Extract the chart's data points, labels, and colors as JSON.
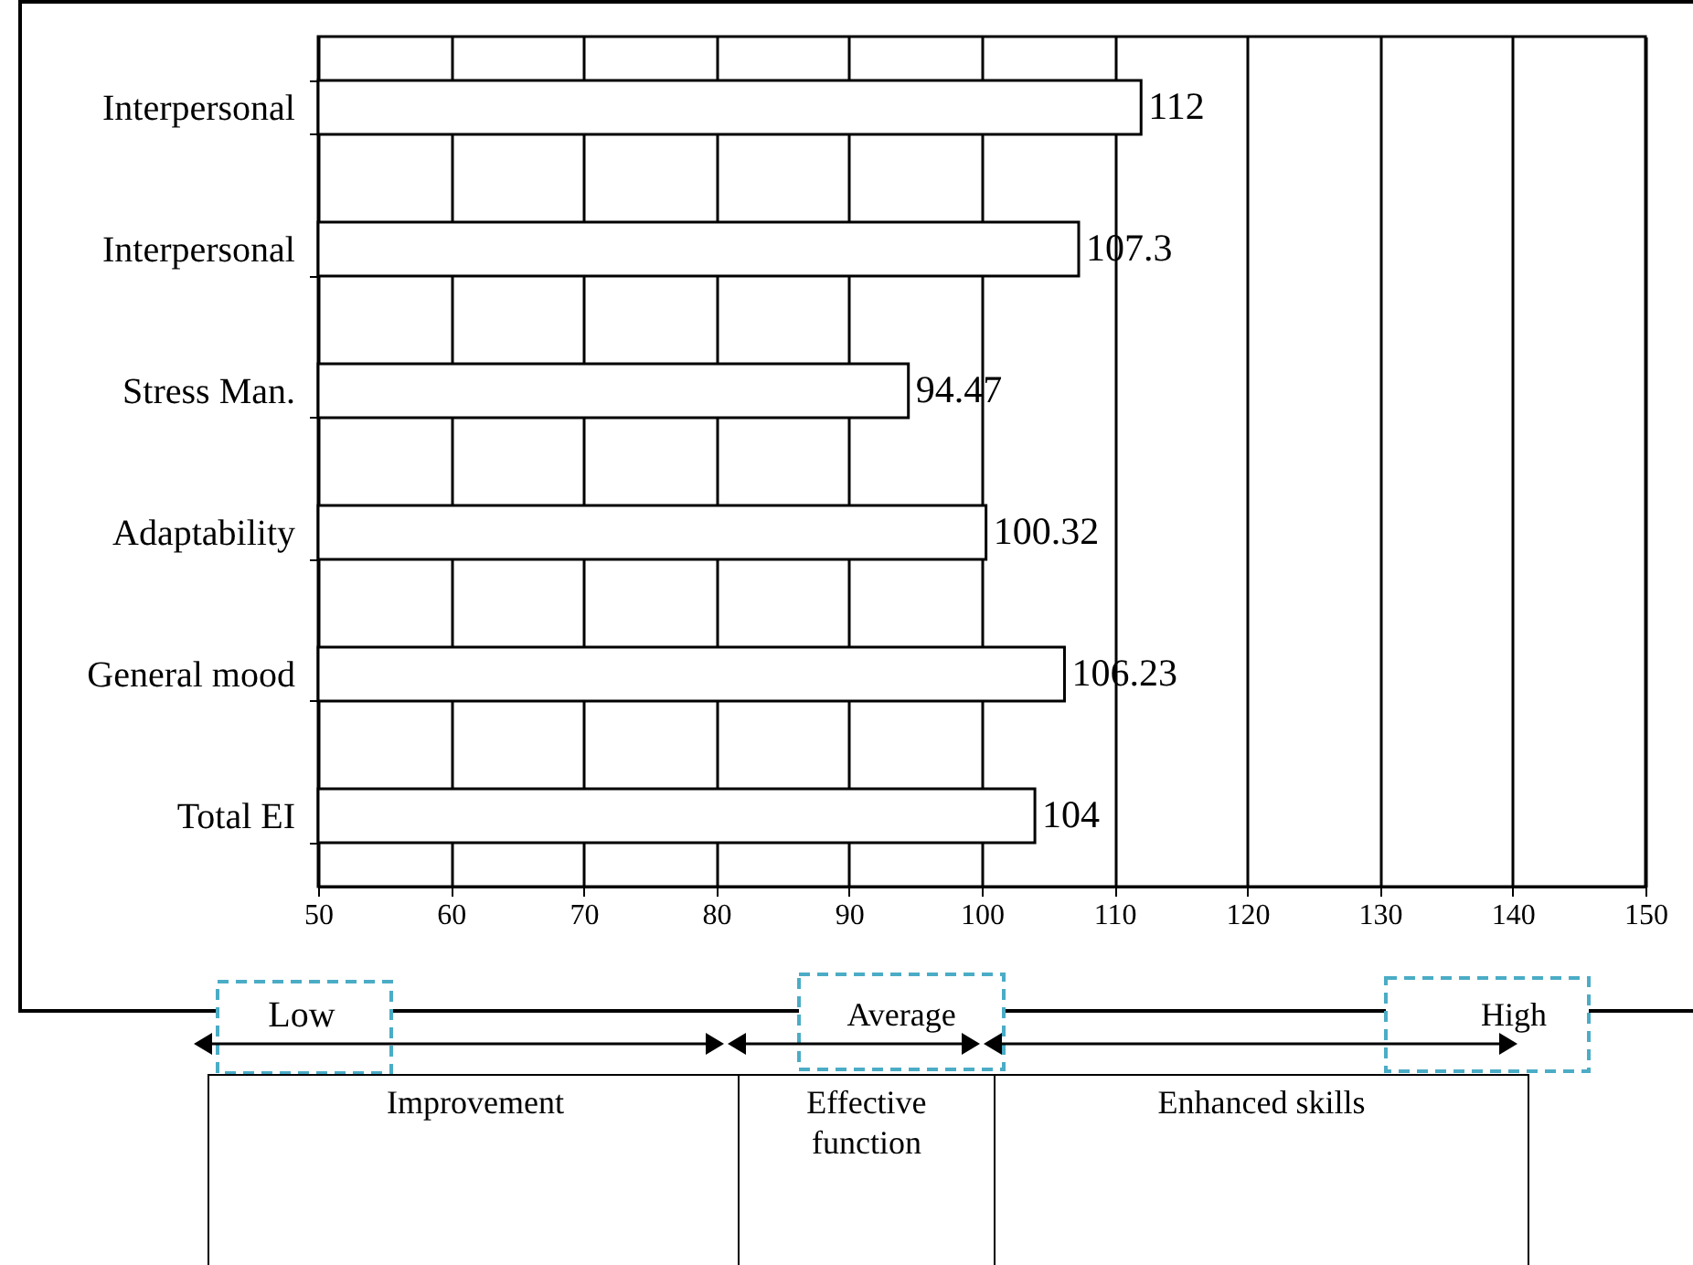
{
  "chart_data": {
    "type": "bar",
    "orientation": "horizontal",
    "categories": [
      "Interpersonal",
      "Interpersonal",
      "Stress Man.",
      "Adaptability",
      "General mood",
      "Total EI"
    ],
    "values": [
      112,
      107.3,
      94.47,
      100.32,
      106.23,
      104
    ],
    "color": "#ffffff",
    "xlim": [
      50,
      150
    ],
    "xticks": [
      50,
      60,
      70,
      80,
      90,
      100,
      110,
      120,
      130,
      140,
      150
    ],
    "grid": "x",
    "data_labels": true,
    "annotations": [
      "Low",
      "Average",
      "High",
      "Improvement",
      "Effective function",
      "Enhanced skills"
    ]
  }
}
